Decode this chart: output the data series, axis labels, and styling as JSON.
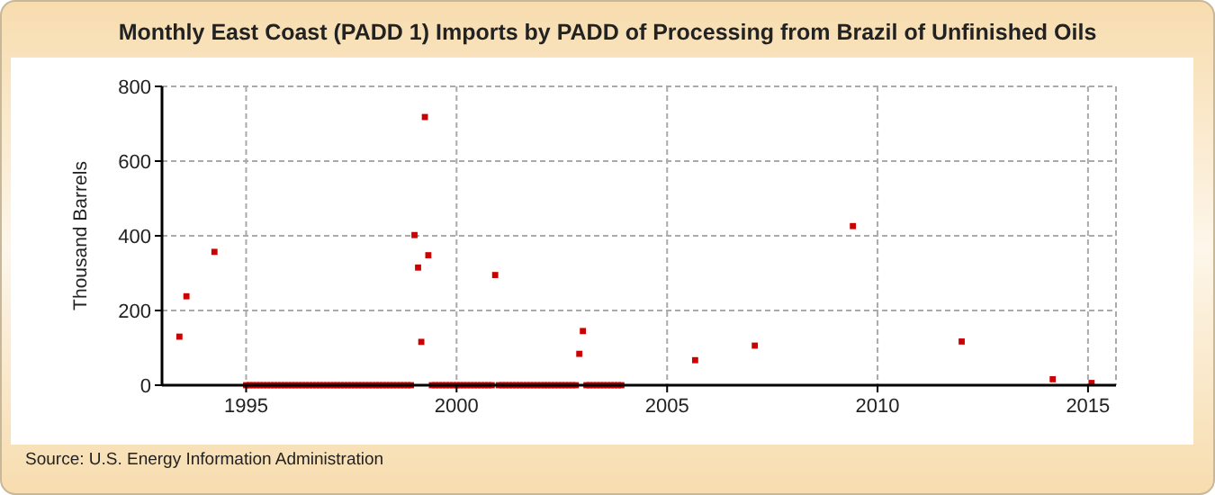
{
  "chart_data": {
    "type": "scatter",
    "title": "Monthly East Coast (PADD 1) Imports by PADD of Processing from Brazil of Unfinished Oils",
    "ylabel": "Thousand Barrels",
    "annotations": [
      "Source: U.S. Energy Information Administration"
    ],
    "x": [
      "1993-06",
      "1993-08",
      "1994-04",
      "1995-01",
      "1995-02",
      "1995-03",
      "1995-04",
      "1995-05",
      "1995-06",
      "1995-07",
      "1995-08",
      "1995-09",
      "1995-10",
      "1995-11",
      "1995-12",
      "1996-01",
      "1996-02",
      "1996-03",
      "1996-04",
      "1996-05",
      "1996-06",
      "1996-07",
      "1996-08",
      "1996-09",
      "1996-10",
      "1996-11",
      "1996-12",
      "1997-01",
      "1997-02",
      "1997-03",
      "1997-04",
      "1997-05",
      "1997-06",
      "1997-07",
      "1997-08",
      "1997-09",
      "1997-10",
      "1997-11",
      "1997-12",
      "1998-01",
      "1998-02",
      "1998-03",
      "1998-04",
      "1998-05",
      "1998-06",
      "1998-07",
      "1998-08",
      "1998-09",
      "1998-10",
      "1998-11",
      "1998-12",
      "1999-01",
      "1999-02",
      "1999-03",
      "1999-04",
      "1999-05",
      "1999-06",
      "1999-07",
      "1999-08",
      "1999-09",
      "1999-10",
      "1999-11",
      "1999-12",
      "2000-01",
      "2000-02",
      "2000-03",
      "2000-04",
      "2000-05",
      "2000-06",
      "2000-07",
      "2000-08",
      "2000-09",
      "2000-10",
      "2000-11",
      "2000-12",
      "2001-01",
      "2001-02",
      "2001-03",
      "2001-04",
      "2001-05",
      "2001-06",
      "2001-07",
      "2001-08",
      "2001-09",
      "2001-10",
      "2001-11",
      "2001-12",
      "2002-01",
      "2002-02",
      "2002-03",
      "2002-04",
      "2002-05",
      "2002-06",
      "2002-07",
      "2002-08",
      "2002-09",
      "2002-10",
      "2002-11",
      "2002-12",
      "2003-01",
      "2003-02",
      "2003-03",
      "2003-04",
      "2003-05",
      "2003-06",
      "2003-07",
      "2003-08",
      "2003-09",
      "2003-10",
      "2003-11",
      "2003-12",
      "2005-09",
      "2007-02",
      "2009-06",
      "2012-01",
      "2014-03",
      "2015-02"
    ],
    "series": [
      {
        "color": "#cc0000",
        "values": [
          130,
          238,
          357,
          0,
          0,
          0,
          0,
          0,
          0,
          0,
          0,
          0,
          0,
          0,
          0,
          0,
          0,
          0,
          0,
          0,
          0,
          0,
          0,
          0,
          0,
          0,
          0,
          0,
          0,
          0,
          0,
          0,
          0,
          0,
          0,
          0,
          0,
          0,
          0,
          0,
          0,
          0,
          0,
          0,
          0,
          0,
          0,
          0,
          0,
          0,
          0,
          402,
          315,
          116,
          718,
          348,
          0,
          0,
          0,
          0,
          0,
          0,
          0,
          0,
          0,
          0,
          0,
          0,
          0,
          0,
          0,
          0,
          0,
          0,
          295,
          0,
          0,
          0,
          0,
          0,
          0,
          0,
          0,
          0,
          0,
          0,
          0,
          0,
          0,
          0,
          0,
          0,
          0,
          0,
          0,
          0,
          0,
          0,
          84,
          145,
          0,
          0,
          0,
          0,
          0,
          0,
          0,
          0,
          0,
          0,
          0,
          67,
          106,
          426,
          117,
          16,
          6
        ]
      }
    ],
    "xlim": [
      "1993-01",
      "2015-09"
    ],
    "xticks": [
      "1995",
      "2000",
      "2005",
      "2010",
      "2015"
    ],
    "ylim": [
      0,
      800
    ],
    "yticks": [
      0,
      200,
      400,
      600,
      800
    ],
    "grid": true,
    "marker": "square"
  }
}
